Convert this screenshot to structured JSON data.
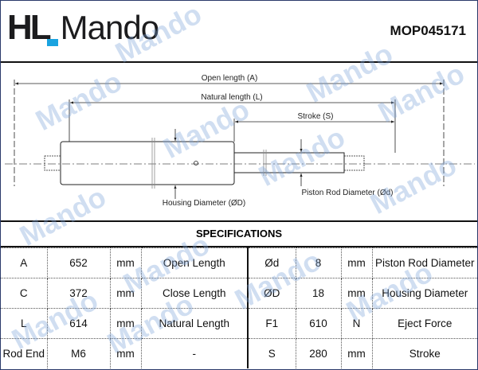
{
  "header": {
    "brand_prefix": "HL",
    "brand_name": "Mando",
    "part_number": "MOP045171",
    "brand_accent": "#1aa3e0"
  },
  "watermark": "Mando",
  "drawing": {
    "open_length": "Open length (A)",
    "natural_length": "Natural length (L)",
    "stroke": "Stroke (S)",
    "housing_diameter": "Housing Diameter (ØD)",
    "rod_diameter": "Piston Rod Diameter (Ød)"
  },
  "specifications": {
    "title": "SPECIFICATIONS",
    "rows": [
      {
        "sym1": "A",
        "val1": "652",
        "unit1": "mm",
        "desc1": "Open Length",
        "sym2": "Ød",
        "val2": "8",
        "unit2": "mm",
        "desc2": "Piston Rod Diameter"
      },
      {
        "sym1": "C",
        "val1": "372",
        "unit1": "mm",
        "desc1": "Close Length",
        "sym2": "ØD",
        "val2": "18",
        "unit2": "mm",
        "desc2": "Housing Diameter"
      },
      {
        "sym1": "L",
        "val1": "614",
        "unit1": "mm",
        "desc1": "Natural Length",
        "sym2": "F1",
        "val2": "610",
        "unit2": "N",
        "desc2": "Eject Force"
      },
      {
        "sym1": "Rod End",
        "val1": "M6",
        "unit1": "mm",
        "desc1": "-",
        "sym2": "S",
        "val2": "280",
        "unit2": "mm",
        "desc2": "Stroke"
      }
    ]
  }
}
